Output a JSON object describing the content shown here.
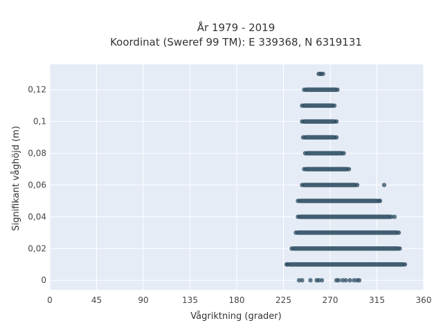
{
  "chart_data": {
    "type": "scatter",
    "title_line1": "År 1979 - 2019",
    "title_line2": "Koordinat (Sweref 99 TM): E 339368, N 6319131",
    "xlabel": "Vågriktning (grader)",
    "ylabel": "Signifikant våghöjd (m)",
    "xlim": [
      0,
      360
    ],
    "ylim": [
      -0.006,
      0.136
    ],
    "xticks": [
      0,
      45,
      90,
      135,
      180,
      225,
      270,
      315,
      360
    ],
    "xtick_labels": [
      "0",
      "45",
      "90",
      "135",
      "180",
      "225",
      "270",
      "315",
      "360"
    ],
    "yticks": [
      0,
      0.02,
      0.04,
      0.06,
      0.08,
      0.1,
      0.12
    ],
    "ytick_labels": [
      "0",
      "0,02",
      "0,04",
      "0,06",
      "0,08",
      "0,1",
      "0,12"
    ],
    "grid": true,
    "marker_color": "#2f4f63",
    "background": "#e5ecf6",
    "bands": [
      {
        "y": 0.13,
        "xmin": 259,
        "xmax": 263
      },
      {
        "y": 0.12,
        "xmin": 245,
        "xmax": 277
      },
      {
        "y": 0.11,
        "xmin": 243,
        "xmax": 274
      },
      {
        "y": 0.1,
        "xmin": 243,
        "xmax": 276
      },
      {
        "y": 0.09,
        "xmin": 244,
        "xmax": 276
      },
      {
        "y": 0.08,
        "xmin": 246,
        "xmax": 283
      },
      {
        "y": 0.07,
        "xmin": 245,
        "xmax": 288
      },
      {
        "y": 0.06,
        "xmin": 243,
        "xmax": 296
      },
      {
        "y": 0.05,
        "xmin": 239,
        "xmax": 317
      },
      {
        "y": 0.04,
        "xmin": 239,
        "xmax": 329
      },
      {
        "y": 0.03,
        "xmin": 237,
        "xmax": 336
      },
      {
        "y": 0.02,
        "xmin": 233,
        "xmax": 337
      },
      {
        "y": 0.01,
        "xmin": 229,
        "xmax": 342
      }
    ],
    "sparse_points": [
      {
        "x": 240,
        "y": 0
      },
      {
        "x": 243,
        "y": 0
      },
      {
        "x": 251,
        "y": 0
      },
      {
        "x": 257,
        "y": 0
      },
      {
        "x": 259,
        "y": 0
      },
      {
        "x": 262,
        "y": 0
      },
      {
        "x": 276,
        "y": 0
      },
      {
        "x": 278,
        "y": 0
      },
      {
        "x": 282,
        "y": 0
      },
      {
        "x": 285,
        "y": 0
      },
      {
        "x": 289,
        "y": 0
      },
      {
        "x": 293,
        "y": 0
      },
      {
        "x": 296,
        "y": 0
      },
      {
        "x": 298,
        "y": 0
      },
      {
        "x": 322,
        "y": 0.06
      },
      {
        "x": 318,
        "y": 0.05
      },
      {
        "x": 332,
        "y": 0.04
      },
      {
        "x": 228,
        "y": 0.01
      }
    ]
  }
}
